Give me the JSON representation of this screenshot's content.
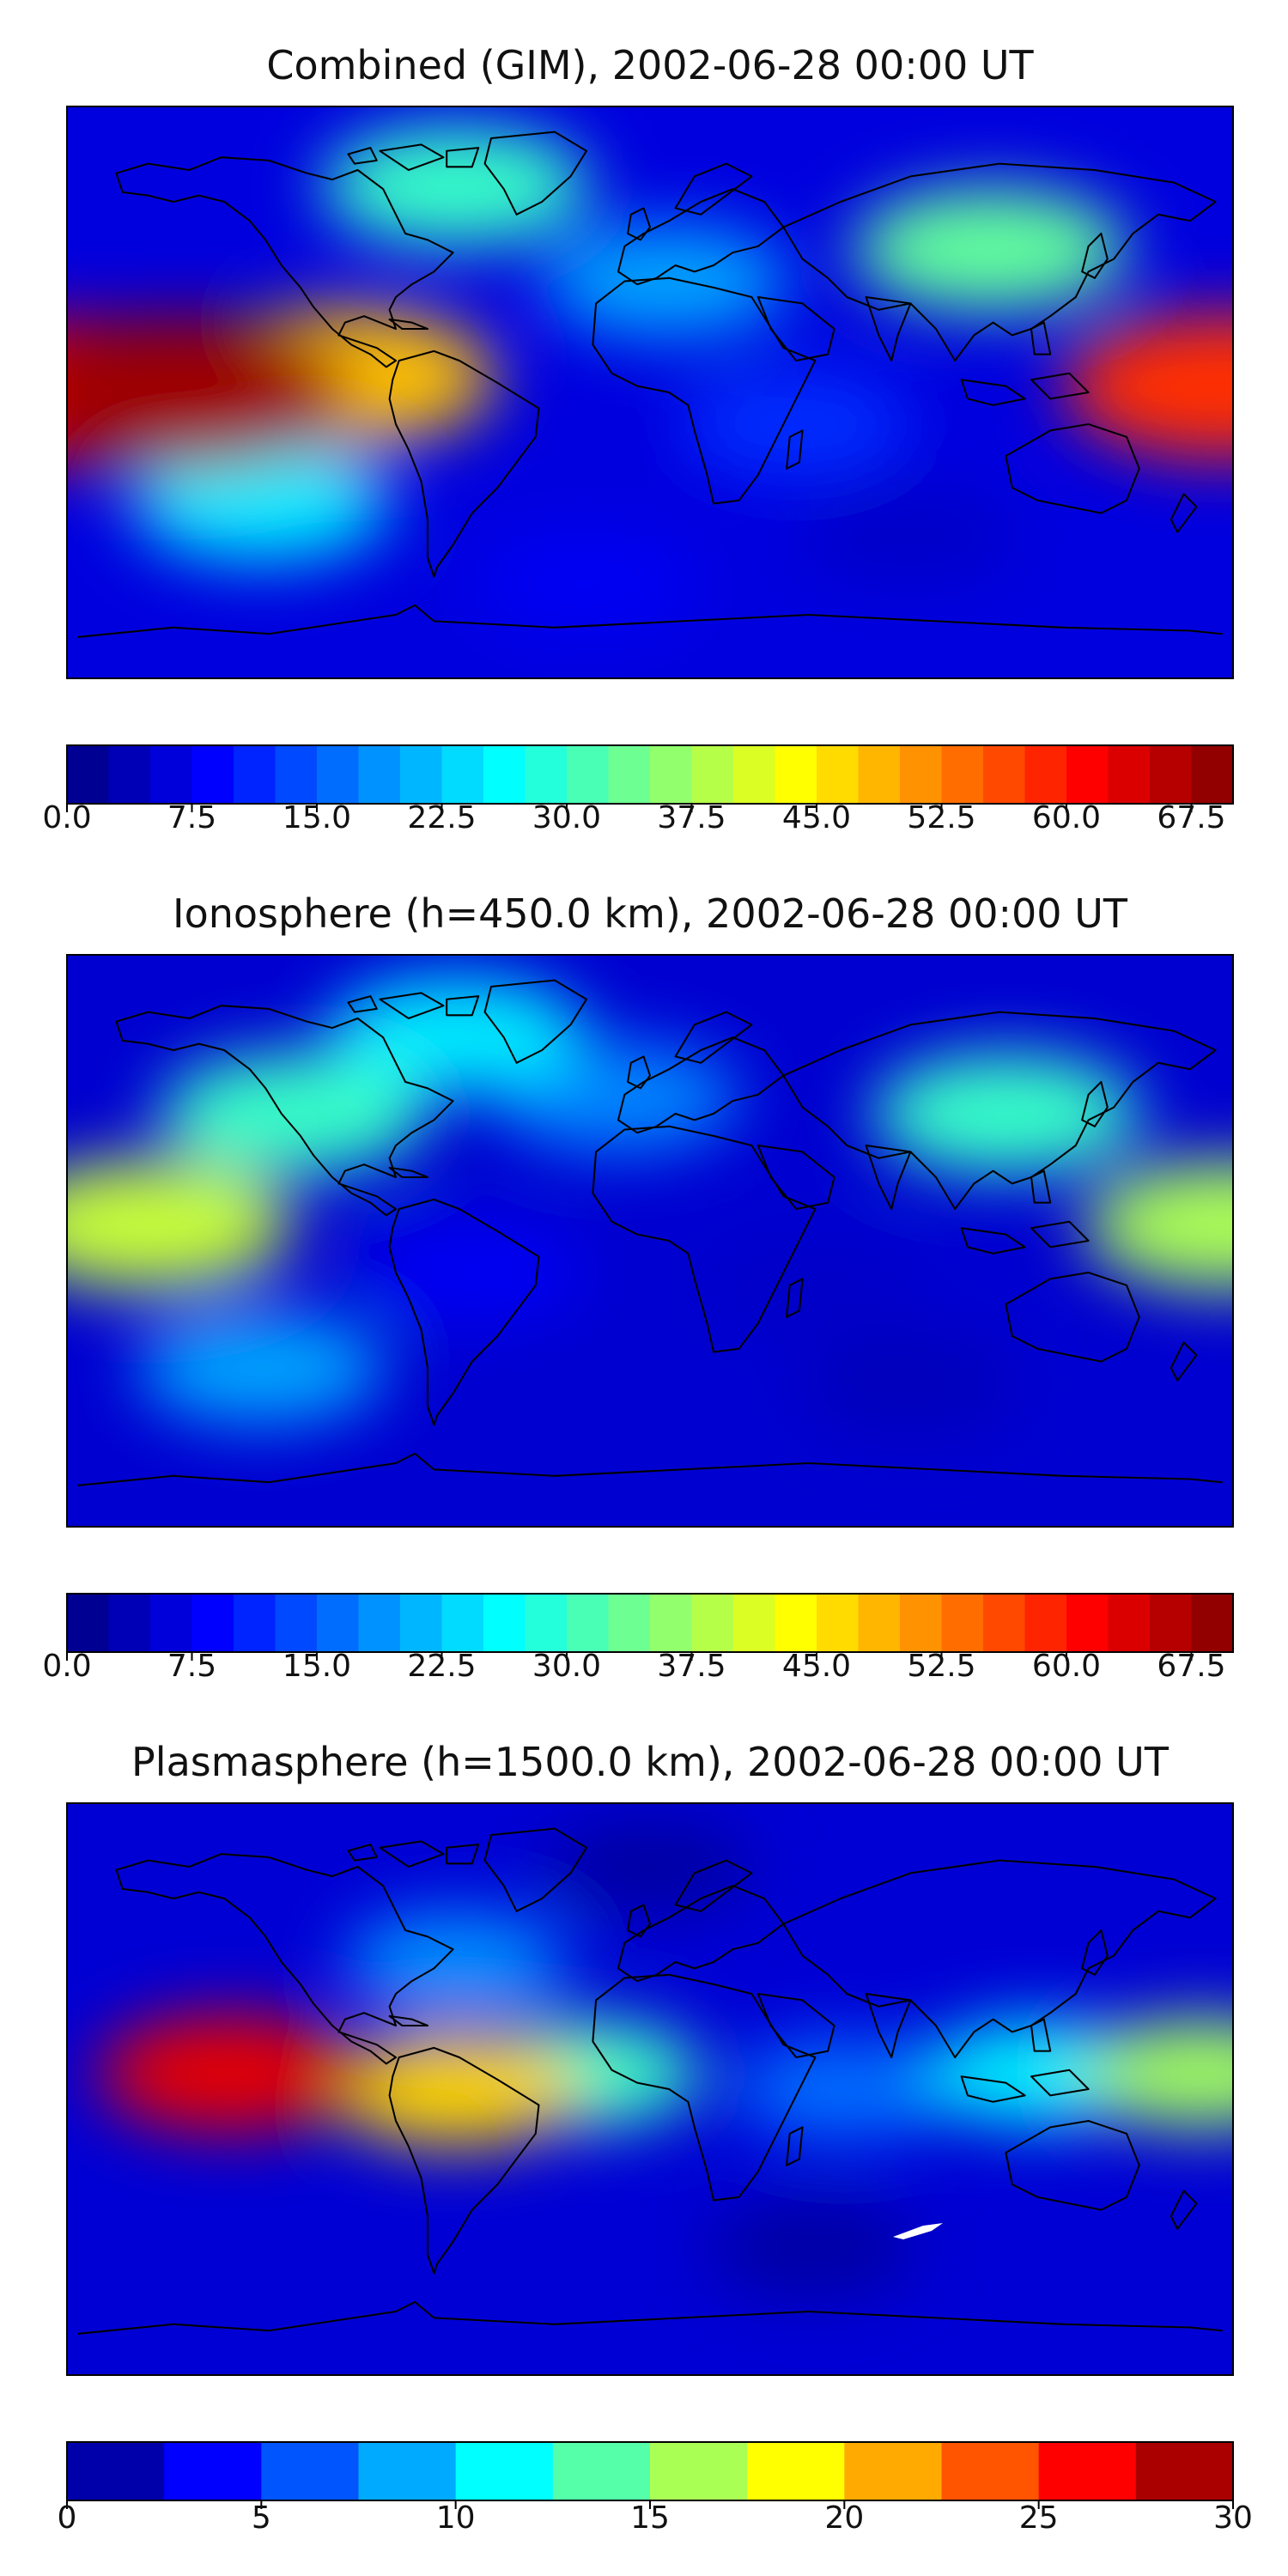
{
  "chart_data": [
    {
      "type": "heatmap",
      "title": "Combined (GIM), 2002-06-28 00:00 UT",
      "map": "world-equirectangular-coastlines",
      "colormap": "jet",
      "colorbar": {
        "min": 0,
        "max": 70,
        "step": 2.5,
        "ticks": [
          0,
          7.5,
          15,
          22.5,
          30,
          37.5,
          45,
          52.5,
          60,
          67.5
        ],
        "tick_labels": [
          "0.0",
          "7.5",
          "15.0",
          "22.5",
          "30.0",
          "37.5",
          "45.0",
          "52.5",
          "60.0",
          "67.5"
        ],
        "placement": "below"
      },
      "features": [
        {
          "lon": -145,
          "lat": 0,
          "value": 68
        },
        {
          "lon": -175,
          "lat": 0,
          "value": 60
        },
        {
          "lon": -95,
          "lat": 5,
          "value": 48
        },
        {
          "lon": 178,
          "lat": 2,
          "value": 58
        },
        {
          "lon": 105,
          "lat": 45,
          "value": 33
        },
        {
          "lon": -60,
          "lat": 65,
          "value": 30
        },
        {
          "lon": -120,
          "lat": -35,
          "value": 25
        },
        {
          "lon": 5,
          "lat": 35,
          "value": 20
        },
        {
          "lon": 45,
          "lat": -10,
          "value": 12
        },
        {
          "lon": 80,
          "lat": -45,
          "value": 5
        },
        {
          "lon": -20,
          "lat": -60,
          "value": 8
        }
      ]
    },
    {
      "type": "heatmap",
      "title": "Ionosphere  (h=450.0 km), 2002-06-28 00:00 UT",
      "map": "world-equirectangular-coastlines",
      "colormap": "jet",
      "colorbar": {
        "min": 0,
        "max": 70,
        "step": 2.5,
        "ticks": [
          0,
          7.5,
          15,
          22.5,
          30,
          37.5,
          45,
          52.5,
          60,
          67.5
        ],
        "tick_labels": [
          "0.0",
          "7.5",
          "15.0",
          "22.5",
          "30.0",
          "37.5",
          "45.0",
          "52.5",
          "60.0",
          "67.5"
        ],
        "placement": "below"
      },
      "features": [
        {
          "lon": -155,
          "lat": 5,
          "value": 40
        },
        {
          "lon": -110,
          "lat": 40,
          "value": 30
        },
        {
          "lon": 110,
          "lat": 40,
          "value": 30
        },
        {
          "lon": 178,
          "lat": 5,
          "value": 38
        },
        {
          "lon": -60,
          "lat": 65,
          "value": 25
        },
        {
          "lon": -10,
          "lat": 45,
          "value": 18
        },
        {
          "lon": -55,
          "lat": -10,
          "value": 8
        },
        {
          "lon": 50,
          "lat": -15,
          "value": 5
        },
        {
          "lon": 80,
          "lat": -45,
          "value": 4
        },
        {
          "lon": -120,
          "lat": -40,
          "value": 20
        }
      ]
    },
    {
      "type": "heatmap",
      "title": "Plasmasphere (h=1500.0 km), 2002-06-28 00:00 UT",
      "map": "world-equirectangular-coastlines",
      "colormap": "jet",
      "colorbar": {
        "min": 0,
        "max": 30,
        "step": 2.5,
        "ticks": [
          0,
          5,
          10,
          15,
          20,
          25,
          30
        ],
        "tick_labels": [
          "0",
          "5",
          "10",
          "15",
          "20",
          "25",
          "30"
        ],
        "placement": "below"
      },
      "features": [
        {
          "lon": -130,
          "lat": 5,
          "value": 27
        },
        {
          "lon": -60,
          "lat": 0,
          "value": 20
        },
        {
          "lon": -20,
          "lat": 5,
          "value": 13
        },
        {
          "lon": 170,
          "lat": 5,
          "value": 16
        },
        {
          "lon": 120,
          "lat": 5,
          "value": 11
        },
        {
          "lon": 60,
          "lat": 0,
          "value": 7
        },
        {
          "lon": -60,
          "lat": 40,
          "value": 8
        },
        {
          "lon": 50,
          "lat": -50,
          "value": 1
        },
        {
          "lon": 0,
          "lat": 70,
          "value": 1
        }
      ]
    }
  ]
}
